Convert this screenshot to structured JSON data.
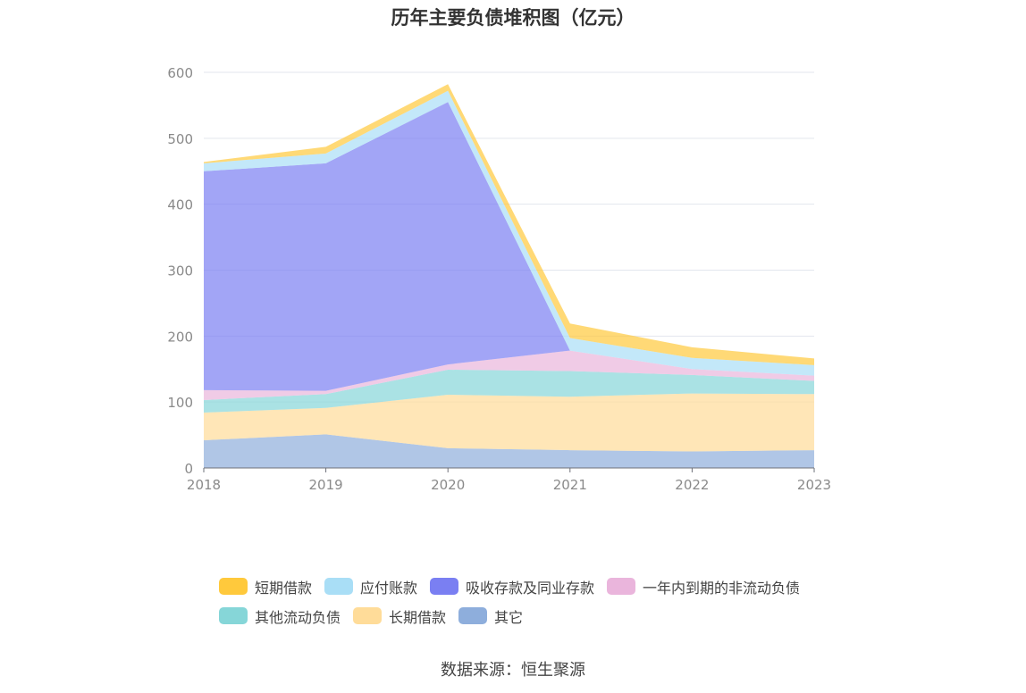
{
  "title": "历年主要负债堆积图（亿元）",
  "source": "数据来源：恒生聚源",
  "chart_data": {
    "type": "area",
    "stacked": true,
    "title": "历年主要负债堆积图（亿元）",
    "categories": [
      "2018",
      "2019",
      "2020",
      "2021",
      "2022",
      "2023"
    ],
    "ylim": [
      0,
      600
    ],
    "yticks": [
      "0",
      "100",
      "200",
      "300",
      "400",
      "500",
      "600"
    ],
    "grid": true,
    "legend_position": "bottom",
    "series": [
      {
        "name": "其它",
        "color": "#8eaedc",
        "values": [
          42,
          51,
          30,
          27,
          25,
          27
        ]
      },
      {
        "name": "长期借款",
        "color": "#ffdc99",
        "values": [
          42,
          40,
          81,
          81,
          88,
          85
        ]
      },
      {
        "name": "其他流动负债",
        "color": "#86d6d8",
        "values": [
          19,
          21,
          38,
          39,
          28,
          20
        ]
      },
      {
        "name": "一年内到期的非流动负债",
        "color": "#eab5dc",
        "values": [
          15,
          5,
          8,
          31,
          9,
          8
        ]
      },
      {
        "name": "吸收存款及同业存款",
        "color": "#7a7ff2",
        "values": [
          332,
          345,
          398,
          0,
          0,
          0
        ]
      },
      {
        "name": "应付账款",
        "color": "#a9def6",
        "values": [
          12,
          15,
          17,
          19,
          17,
          16
        ]
      },
      {
        "name": "短期借款",
        "color": "#ffc93c",
        "values": [
          2,
          10,
          10,
          22,
          16,
          10
        ]
      }
    ],
    "legend_order": [
      "短期借款",
      "应付账款",
      "吸收存款及同业存款",
      "一年内到期的非流动负债",
      "其他流动负债",
      "长期借款",
      "其它"
    ]
  }
}
